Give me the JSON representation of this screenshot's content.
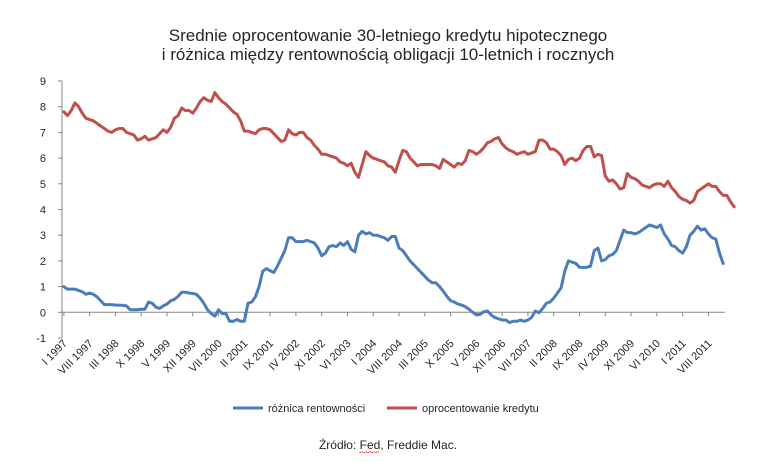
{
  "chart_data": {
    "type": "line",
    "title": [
      "Srednie oprocentowanie 30-letniego kredytu hipotecznego",
      "i różnica między rentownością obligacji 10-letnich i rocznych"
    ],
    "xlabel": "",
    "ylabel": "",
    "ylim": [
      -1,
      9
    ],
    "yticks": [
      -1,
      0,
      1,
      2,
      3,
      4,
      5,
      6,
      7,
      8,
      9
    ],
    "grid": false,
    "x_start": "I 1997",
    "x_step": "month",
    "xtick_labels": [
      "I 1997",
      "VIII 1997",
      "III 1998",
      "X 1998",
      "V 1999",
      "XII 1999",
      "VII 2000",
      "II 2001",
      "IX 2001",
      "IV 2002",
      "XI 2002",
      "VI 2003",
      "I 2004",
      "VIII 2004",
      "III 2005",
      "X 2005",
      "V 2006",
      "XII 2006",
      "VII 2007",
      "II 2008",
      "IX 2008",
      "IV 2009",
      "XI 2009",
      "VI 2010",
      "I 2011",
      "VIII 2011"
    ],
    "xtick_months": [
      0,
      7,
      14,
      21,
      28,
      35,
      42,
      49,
      56,
      63,
      70,
      77,
      84,
      91,
      98,
      105,
      112,
      119,
      126,
      133,
      140,
      147,
      154,
      161,
      168,
      175
    ],
    "legend_position": "bottom",
    "series": [
      {
        "name": "różnica rentowności",
        "color": "#4a7ebb",
        "values": [
          1.0,
          0.9,
          0.9,
          0.9,
          0.85,
          0.8,
          0.7,
          0.75,
          0.7,
          0.6,
          0.45,
          0.3,
          0.3,
          0.3,
          0.28,
          0.28,
          0.27,
          0.25,
          0.1,
          0.1,
          0.1,
          0.12,
          0.12,
          0.4,
          0.35,
          0.2,
          0.15,
          0.25,
          0.32,
          0.45,
          0.5,
          0.62,
          0.78,
          0.78,
          0.75,
          0.73,
          0.7,
          0.55,
          0.35,
          0.1,
          -0.05,
          -0.15,
          0.1,
          -0.05,
          -0.05,
          -0.35,
          -0.35,
          -0.28,
          -0.35,
          -0.35,
          0.35,
          0.4,
          0.6,
          1.0,
          1.6,
          1.7,
          1.62,
          1.55,
          1.8,
          2.1,
          2.4,
          2.9,
          2.9,
          2.75,
          2.75,
          2.75,
          2.8,
          2.75,
          2.7,
          2.5,
          2.2,
          2.3,
          2.55,
          2.6,
          2.55,
          2.7,
          2.6,
          2.75,
          2.45,
          2.35,
          3.0,
          3.15,
          3.05,
          3.1,
          3.0,
          3.0,
          2.95,
          2.9,
          2.8,
          2.95,
          2.95,
          2.5,
          2.4,
          2.2,
          2.0,
          1.85,
          1.7,
          1.55,
          1.4,
          1.25,
          1.15,
          1.15,
          1.0,
          0.82,
          0.62,
          0.45,
          0.4,
          0.32,
          0.28,
          0.22,
          0.12,
          0.0,
          -0.1,
          -0.08,
          0.02,
          0.05,
          -0.1,
          -0.2,
          -0.25,
          -0.3,
          -0.3,
          -0.4,
          -0.35,
          -0.35,
          -0.3,
          -0.35,
          -0.3,
          -0.2,
          0.05,
          -0.02,
          0.15,
          0.35,
          0.4,
          0.55,
          0.75,
          0.95,
          1.6,
          2.0,
          1.95,
          1.9,
          1.75,
          1.75,
          1.75,
          1.8,
          2.4,
          2.5,
          2.0,
          2.05,
          2.2,
          2.25,
          2.4,
          2.8,
          3.2,
          3.1,
          3.1,
          3.05,
          3.1,
          3.2,
          3.3,
          3.4,
          3.35,
          3.3,
          3.4,
          3.05,
          2.85,
          2.6,
          2.55,
          2.4,
          2.3,
          2.55,
          3.0,
          3.15,
          3.35,
          3.2,
          3.25,
          3.05,
          2.9,
          2.85,
          2.3,
          1.9
        ]
      },
      {
        "name": "oprocentowanie kredytu",
        "color": "#c0504d",
        "values": [
          7.8,
          7.65,
          7.85,
          8.15,
          8.0,
          7.75,
          7.55,
          7.5,
          7.45,
          7.35,
          7.25,
          7.15,
          7.05,
          7.0,
          7.1,
          7.15,
          7.15,
          7.0,
          6.95,
          6.9,
          6.7,
          6.75,
          6.85,
          6.7,
          6.75,
          6.8,
          6.95,
          7.1,
          7.0,
          7.2,
          7.55,
          7.65,
          7.95,
          7.85,
          7.85,
          7.75,
          7.95,
          8.2,
          8.35,
          8.25,
          8.2,
          8.55,
          8.35,
          8.2,
          8.1,
          7.95,
          7.8,
          7.7,
          7.45,
          7.05,
          7.05,
          7.0,
          6.95,
          7.1,
          7.15,
          7.15,
          7.1,
          6.95,
          6.8,
          6.65,
          6.7,
          7.1,
          6.95,
          6.9,
          7.0,
          7.0,
          6.8,
          6.7,
          6.5,
          6.35,
          6.15,
          6.15,
          6.1,
          6.05,
          6.0,
          5.85,
          5.8,
          5.7,
          5.8,
          5.45,
          5.25,
          5.75,
          6.25,
          6.1,
          6.0,
          5.95,
          5.9,
          5.85,
          5.7,
          5.65,
          5.45,
          5.9,
          6.3,
          6.25,
          6.0,
          5.85,
          5.7,
          5.75,
          5.75,
          5.75,
          5.75,
          5.7,
          5.6,
          5.95,
          5.85,
          5.75,
          5.65,
          5.8,
          5.75,
          5.9,
          6.3,
          6.25,
          6.15,
          6.25,
          6.4,
          6.6,
          6.65,
          6.75,
          6.8,
          6.55,
          6.4,
          6.3,
          6.25,
          6.15,
          6.2,
          6.25,
          6.15,
          6.2,
          6.25,
          6.7,
          6.7,
          6.6,
          6.35,
          6.35,
          6.25,
          6.1,
          5.75,
          5.95,
          6.0,
          5.9,
          6.0,
          6.3,
          6.45,
          6.45,
          6.05,
          6.15,
          6.1,
          5.3,
          5.1,
          5.15,
          5.0,
          4.8,
          4.85,
          5.4,
          5.25,
          5.2,
          5.1,
          4.95,
          4.9,
          4.85,
          4.95,
          5.0,
          5.0,
          4.9,
          5.1,
          4.85,
          4.7,
          4.5,
          4.4,
          4.35,
          4.25,
          4.35,
          4.7,
          4.8,
          4.9,
          5.0,
          4.9,
          4.9,
          4.7,
          4.55,
          4.55,
          4.3,
          4.1
        ]
      }
    ],
    "source": "Źródło: Fed, Freddie Mac."
  }
}
